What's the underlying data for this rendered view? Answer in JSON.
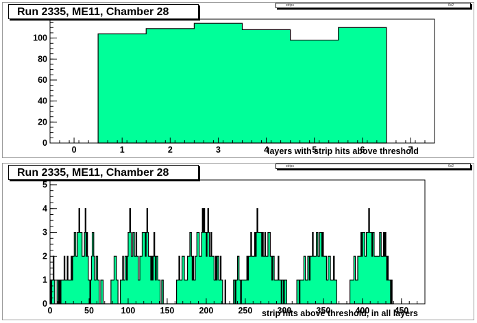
{
  "colors": {
    "fill": "#00ff99",
    "line": "#000000",
    "frame": "#000000"
  },
  "chart_data": [
    {
      "type": "bar",
      "title": "Run 2335, ME11, Chamber 28",
      "stats_box": {
        "name": "strips",
        "value": "6x2"
      },
      "xlabel": "layers with strip hits above threshold",
      "ylabel": "",
      "xlim": [
        -0.5,
        7.5
      ],
      "ylim": [
        0,
        118
      ],
      "xticks": [
        0,
        1,
        2,
        3,
        4,
        5,
        6,
        7
      ],
      "yticks": [
        0,
        20,
        40,
        60,
        80,
        100
      ],
      "bin_edges": [
        0.5,
        1.5,
        2.5,
        3.5,
        4.5,
        5.5,
        6.5
      ],
      "values": [
        104,
        109,
        114,
        108,
        98,
        110
      ]
    },
    {
      "type": "bar",
      "title": "Run 2335, ME11, Chamber 28",
      "stats_box": {
        "name": "strips",
        "value": "6x2"
      },
      "xlabel": "strip hits above threshold, in all layers",
      "ylabel": "",
      "xlim": [
        0,
        480
      ],
      "ylim": [
        0,
        5.2
      ],
      "xticks": [
        0,
        50,
        100,
        150,
        200,
        250,
        300,
        350,
        400,
        450
      ],
      "yticks": [
        0,
        1,
        2,
        3,
        4,
        5
      ],
      "bin_width": 1,
      "bin_start": 0,
      "values": [
        1,
        0,
        1,
        1,
        2,
        1,
        0,
        0,
        0,
        1,
        1,
        0,
        1,
        0,
        1,
        1,
        1,
        1,
        2,
        1,
        1,
        1,
        2,
        1,
        1,
        1,
        1,
        2,
        1,
        2,
        2,
        3,
        3,
        2,
        2,
        3,
        3,
        4,
        3,
        3,
        3,
        2,
        2,
        2,
        3,
        4,
        2,
        3,
        2,
        1,
        1,
        0,
        1,
        2,
        3,
        3,
        2,
        1,
        1,
        2,
        2,
        1,
        1,
        0,
        0,
        1,
        1,
        1,
        0,
        0,
        0,
        0,
        0,
        0,
        0,
        0,
        0,
        0,
        1,
        1,
        1,
        1,
        2,
        2,
        2,
        1,
        1,
        0,
        0,
        0,
        1,
        1,
        1,
        2,
        1,
        1,
        2,
        2,
        1,
        2,
        3,
        3,
        4,
        3,
        2,
        2,
        3,
        3,
        2,
        2,
        3,
        2,
        2,
        1,
        1,
        2,
        2,
        2,
        3,
        3,
        3,
        3,
        2,
        3,
        4,
        3,
        2,
        2,
        2,
        1,
        2,
        1,
        2,
        3,
        2,
        1,
        2,
        2,
        1,
        1,
        1,
        0,
        0,
        1,
        1,
        0,
        0,
        0,
        0,
        0,
        0,
        0,
        0,
        0,
        0,
        0,
        0,
        0,
        0,
        0,
        0,
        0,
        1,
        1,
        1,
        2,
        1,
        1,
        1,
        2,
        2,
        2,
        1,
        1,
        1,
        1,
        2,
        2,
        2,
        3,
        3,
        2,
        1,
        2,
        1,
        1,
        2,
        2,
        3,
        3,
        3,
        2,
        2,
        2,
        3,
        4,
        3,
        4,
        3,
        3,
        2,
        3,
        4,
        3,
        2,
        2,
        3,
        2,
        2,
        2,
        1,
        1,
        2,
        1,
        2,
        2,
        1,
        1,
        2,
        1,
        1,
        0,
        0,
        0,
        1,
        0,
        0,
        0,
        0,
        0,
        0,
        0,
        0,
        0,
        0,
        1,
        1,
        0,
        1,
        1,
        2,
        2,
        1,
        1,
        0,
        1,
        1,
        1,
        1,
        1,
        1,
        1,
        2,
        1,
        2,
        2,
        2,
        3,
        2,
        2,
        2,
        2,
        3,
        2,
        3,
        4,
        3,
        3,
        3,
        3,
        3,
        2,
        3,
        2,
        2,
        3,
        2,
        2,
        2,
        3,
        3,
        3,
        2,
        2,
        1,
        2,
        2,
        1,
        1,
        1,
        1,
        1,
        2,
        1,
        1,
        1,
        0,
        1,
        1,
        0,
        1,
        1,
        1,
        0,
        0,
        0,
        0,
        0,
        0,
        0,
        0,
        0,
        0,
        0,
        0,
        0,
        1,
        1,
        1,
        0,
        1,
        1,
        1,
        1,
        1,
        2,
        2,
        1,
        1,
        1,
        2,
        2,
        1,
        2,
        2,
        2,
        3,
        2,
        2,
        2,
        2,
        3,
        3,
        2,
        2,
        3,
        3,
        3,
        2,
        3,
        2,
        2,
        2,
        2,
        1,
        1,
        2,
        2,
        2,
        1,
        1,
        1,
        1,
        2,
        1,
        1,
        1,
        0,
        0,
        0,
        0,
        0,
        0,
        0,
        0,
        0,
        0,
        0,
        0,
        0,
        0,
        0,
        0,
        0,
        1,
        1,
        1,
        1,
        1,
        2,
        2,
        1,
        1,
        1,
        2,
        2,
        2,
        2,
        3,
        2,
        3,
        3,
        3,
        2,
        2,
        3,
        3,
        3,
        4,
        3,
        3,
        3,
        2,
        3,
        3,
        2,
        2,
        2,
        2,
        2,
        2,
        2,
        3,
        3,
        2,
        2,
        2,
        3,
        2,
        3,
        2,
        1,
        2,
        1,
        1,
        1,
        0,
        1,
        0,
        0
      ]
    }
  ]
}
